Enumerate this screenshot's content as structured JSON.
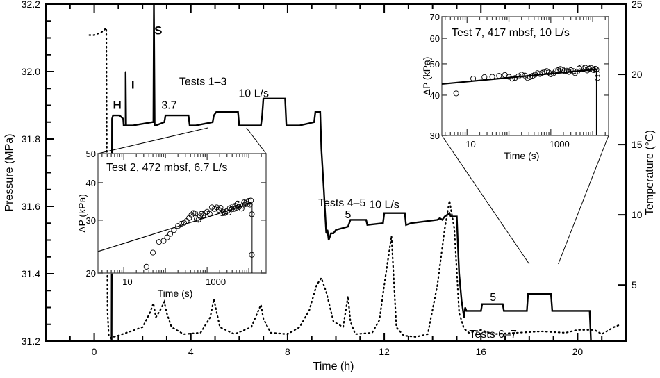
{
  "chart_data": {
    "type": "line",
    "title": "",
    "xlabel": "Time (h)",
    "ylabel": "Pressure (MPa)",
    "y2label": "Temperature (°C)",
    "xlim": [
      -2,
      22
    ],
    "ylim": [
      31.2,
      32.2
    ],
    "y2lim": [
      1,
      25
    ],
    "grid": false,
    "xticks": [
      0,
      4,
      8,
      12,
      16,
      20
    ],
    "xtick_labels": [
      "0",
      "4",
      "8",
      "12",
      "16",
      "20"
    ],
    "yticks": [
      31.2,
      31.4,
      31.6,
      31.8,
      32.0,
      32.2
    ],
    "ytick_labels": [
      "31.2",
      "31.4",
      "31.6",
      "31.8",
      "32.0",
      "32.2"
    ],
    "y2ticks": [
      5,
      10,
      15,
      20,
      25
    ],
    "y2tick_labels": [
      "5",
      "10",
      "15",
      "20",
      "25"
    ],
    "series": [
      {
        "name": "Pressure",
        "axis": "left",
        "style": "solid",
        "x": [
          0.72,
          0.74,
          0.78,
          1.05,
          1.2,
          1.22,
          1.3,
          1.3,
          1.32,
          1.6,
          2.4,
          2.45,
          2.47,
          2.5,
          2.55,
          2.9,
          2.95,
          3.9,
          3.95,
          4.2,
          4.9,
          4.95,
          5.05,
          5.95,
          6.0,
          6.2,
          6.9,
          6.95,
          7.0,
          7.9,
          7.95,
          8.5,
          9.1,
          9.15,
          9.35,
          9.4,
          9.5,
          9.6,
          9.65,
          9.7,
          9.8,
          9.9,
          10.0,
          10.5,
          10.6,
          11.0,
          11.25,
          11.3,
          11.95,
          12.0,
          12.05,
          12.85,
          12.9,
          13.1,
          14.2,
          14.3,
          14.4,
          14.5,
          14.7,
          14.75,
          14.8,
          15.0,
          15.05,
          15.1,
          15.2,
          15.3,
          15.35,
          15.4,
          15.6,
          16.0,
          16.05,
          16.9,
          16.95,
          17.9,
          17.95,
          18.9,
          18.95,
          19.3,
          20.5,
          20.55
        ],
        "y": [
          31.2,
          31.86,
          31.87,
          31.87,
          31.86,
          31.84,
          31.84,
          32.0,
          31.84,
          31.84,
          31.85,
          31.85,
          32.2,
          31.84,
          31.84,
          31.85,
          31.87,
          31.87,
          31.84,
          31.84,
          31.85,
          31.87,
          31.88,
          31.88,
          31.84,
          31.84,
          31.84,
          31.87,
          31.92,
          31.92,
          31.84,
          31.84,
          31.85,
          31.88,
          31.88,
          31.77,
          31.65,
          31.52,
          31.53,
          31.5,
          31.52,
          31.52,
          31.53,
          31.54,
          31.56,
          31.56,
          31.56,
          31.545,
          31.55,
          31.58,
          31.58,
          31.58,
          31.545,
          31.55,
          31.56,
          31.565,
          31.56,
          31.57,
          31.58,
          31.57,
          31.57,
          31.57,
          31.48,
          31.4,
          31.32,
          31.27,
          31.3,
          31.29,
          31.29,
          31.29,
          31.31,
          31.31,
          31.29,
          31.29,
          31.34,
          31.34,
          31.29,
          31.29,
          31.29,
          31.2
        ]
      },
      {
        "name": "Temperature",
        "axis": "right",
        "style": "dotted",
        "x": [
          -0.2,
          0.0,
          0.3,
          0.5,
          0.55,
          0.6,
          0.7,
          0.8,
          1.0,
          1.5,
          2.0,
          2.3,
          2.45,
          2.55,
          2.7,
          2.9,
          3.0,
          3.2,
          3.7,
          4.4,
          4.8,
          4.95,
          5.2,
          5.8,
          6.5,
          6.9,
          7.0,
          7.3,
          8.0,
          8.5,
          8.9,
          9.2,
          9.4,
          9.6,
          9.9,
          10.3,
          10.5,
          10.6,
          10.8,
          11.5,
          11.8,
          12.0,
          12.3,
          12.5,
          12.8,
          13.3,
          13.8,
          14.2,
          14.5,
          14.7,
          14.9,
          15.1,
          15.3,
          15.5,
          16.0,
          16.5,
          18.5,
          19.5,
          20.0,
          20.7,
          21.0,
          21.5,
          21.8
        ],
        "y": [
          22.8,
          22.8,
          23.0,
          23.3,
          3.2,
          1.4,
          1.2,
          1.3,
          1.4,
          1.7,
          2.0,
          3.0,
          3.7,
          2.7,
          3.1,
          3.8,
          3.0,
          2.0,
          1.5,
          1.6,
          2.7,
          4.0,
          2.0,
          1.5,
          2.0,
          3.6,
          2.6,
          1.6,
          1.5,
          2.0,
          3.2,
          5.0,
          5.5,
          4.5,
          2.4,
          2.0,
          4.2,
          2.4,
          1.5,
          1.6,
          2.5,
          5.0,
          8.5,
          2.0,
          1.4,
          1.3,
          1.5,
          5.0,
          9.0,
          11.0,
          9.0,
          3.0,
          1.9,
          1.6,
          1.8,
          1.5,
          1.7,
          1.6,
          1.8,
          1.8,
          1.5,
          2.0,
          2.2
        ]
      }
    ],
    "annotations": [
      {
        "text": "H",
        "x": 0.95,
        "y": 31.89,
        "bold": true
      },
      {
        "text": "I",
        "x": 1.6,
        "y": 31.95,
        "bold": true
      },
      {
        "text": "S",
        "x": 2.65,
        "y": 32.11,
        "bold": true
      },
      {
        "text": "Tests 1–3",
        "x": 4.5,
        "y": 31.96,
        "bold": false
      },
      {
        "text": "3.7",
        "x": 3.1,
        "y": 31.89,
        "bold": false
      },
      {
        "text": "10 L/s",
        "x": 6.6,
        "y": 31.925,
        "bold": false
      },
      {
        "text": "Tests 4–5",
        "x": 10.25,
        "y": 31.6,
        "bold": false
      },
      {
        "text": "5",
        "x": 10.5,
        "y": 31.565,
        "bold": false
      },
      {
        "text": "10 L/s",
        "x": 12.0,
        "y": 31.595,
        "bold": false
      },
      {
        "text": "5",
        "x": 16.5,
        "y": 31.32,
        "bold": false
      },
      {
        "text": "Tests 6–7",
        "x": 16.5,
        "y": 31.21,
        "bold": false
      }
    ],
    "insets": [
      {
        "name": "test2",
        "type": "scatter",
        "title": "Test 2, 472 mbsf, 6.7 L/s",
        "xlabel": "Time (s)",
        "ylabel": "ΔP (kPa)",
        "xscale": "log",
        "yscale": "log",
        "xlim": [
          2.4,
          26000
        ],
        "ylim": [
          20,
          50
        ],
        "xtick_labels": [
          "10",
          "1000"
        ],
        "xticks": [
          10,
          1000
        ],
        "ytick_labels": [
          "20",
          "30",
          "40",
          "50"
        ],
        "yticks": [
          20,
          30,
          40,
          50
        ],
        "zoom_from_h": [
          4.7,
          6.3
        ],
        "fit_line": {
          "x": [
            2.4,
            12000
          ],
          "y": [
            23.6,
            34.2
          ]
        },
        "drop_x": 12000,
        "points": {
          "x": [
            35,
            50,
            70,
            90,
            110,
            130,
            160,
            200,
            240,
            280,
            320,
            370,
            420,
            470,
            520,
            560,
            620,
            680,
            730,
            800,
            900,
            1000,
            1150,
            1300,
            1500,
            1700,
            1900,
            2100,
            2300,
            2500,
            2700,
            2900,
            3100,
            3300,
            3500,
            3800,
            4100,
            4400,
            4700,
            5000,
            5400,
            5800,
            6200,
            6700,
            7200,
            7700,
            8200,
            8800,
            9400,
            10000,
            10600,
            11200,
            11800,
            11800
          ],
          "y": [
            21.0,
            23.4,
            25.4,
            25.6,
            26.3,
            27.0,
            27.8,
            28.7,
            29.2,
            29.4,
            29.8,
            30.5,
            31.2,
            31.7,
            31.6,
            30.2,
            30.1,
            30.9,
            31.5,
            31.1,
            31.7,
            32.0,
            31.5,
            33.1,
            32.7,
            33.1,
            32.5,
            33.0,
            31.6,
            31.9,
            31.7,
            32.1,
            32.3,
            31.8,
            32.9,
            32.6,
            33.3,
            32.7,
            33.5,
            33.0,
            34.1,
            33.2,
            33.9,
            32.8,
            33.5,
            34.4,
            33.9,
            34.6,
            34.0,
            34.8,
            33.8,
            34.9,
            31.4,
            23.0
          ]
        }
      },
      {
        "name": "test7",
        "type": "scatter",
        "title": "Test 7, 417 mbsf, 10 L/s",
        "xlabel": "Time (s)",
        "ylabel": "ΔP (kPa)",
        "xscale": "log",
        "yscale": "log",
        "xlim": [
          2.5,
          24000
        ],
        "ylim": [
          30,
          70
        ],
        "xtick_labels": [
          "10",
          "1000"
        ],
        "xticks": [
          10,
          1000
        ],
        "ytick_labels": [
          "30",
          "40",
          "50",
          "60",
          "70"
        ],
        "yticks": [
          30,
          40,
          50,
          60,
          70
        ],
        "zoom_from_h": [
          18.0,
          19.2
        ],
        "fit_line": {
          "x": [
            2.5,
            12500
          ],
          "y": [
            43.3,
            48.1
          ]
        },
        "drop_x": 12500,
        "points": {
          "x": [
            5.5,
            14,
            26,
            40,
            58,
            80,
            100,
            120,
            140,
            170,
            200,
            240,
            280,
            320,
            370,
            420,
            480,
            550,
            620,
            700,
            800,
            900,
            1000,
            1150,
            1300,
            1500,
            1700,
            1900,
            2100,
            2400,
            2700,
            3000,
            3400,
            3800,
            4300,
            4800,
            5400,
            6000,
            6700,
            7400,
            8200,
            9000,
            9800,
            10600,
            11500,
            12300,
            13000,
            13000
          ],
          "y": [
            40.5,
            45.0,
            45.5,
            45.6,
            45.9,
            46.2,
            45.6,
            45.0,
            45.2,
            45.8,
            46.3,
            46.0,
            45.2,
            45.5,
            45.9,
            46.3,
            46.8,
            46.5,
            46.9,
            47.2,
            47.5,
            47.0,
            46.4,
            46.7,
            47.4,
            47.8,
            48.2,
            48.0,
            47.5,
            47.6,
            47.2,
            47.8,
            47.5,
            46.8,
            47.3,
            48.4,
            48.8,
            48.2,
            48.6,
            47.7,
            48.3,
            48.6,
            48.0,
            47.8,
            48.3,
            48.0,
            46.6,
            45.2
          ]
        }
      }
    ]
  }
}
